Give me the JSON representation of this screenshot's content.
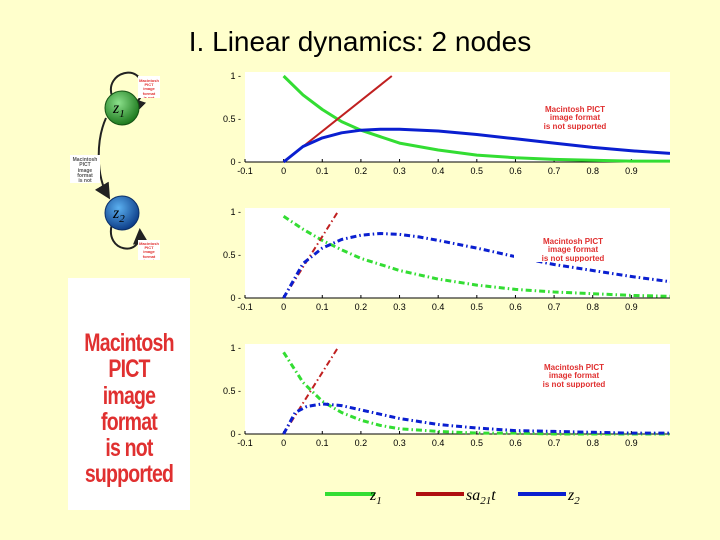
{
  "slide": {
    "title": "I. Linear dynamics: 2 nodes"
  },
  "nodes": [
    {
      "id": "z1",
      "name": "z",
      "sub": "1",
      "color": "#2E8B2E"
    },
    {
      "id": "z2",
      "name": "z",
      "sub": "2",
      "color": "#1E5FB4"
    }
  ],
  "pict_placeholder": {
    "text_lines": [
      "Macintosh PICT",
      "image format",
      "is not supported"
    ]
  },
  "legend": [
    {
      "name": "z",
      "sub": "1",
      "post": "",
      "color": "#33DD33"
    },
    {
      "name": "sa",
      "sub": "21",
      "post": "t",
      "color": "#B01010"
    },
    {
      "name": "z",
      "sub": "2",
      "post": "",
      "color": "#0A1FD0"
    }
  ],
  "chart_data": [
    {
      "type": "line",
      "panel": "top",
      "xlim": [
        -0.1,
        1.0
      ],
      "ylim": [
        0,
        1
      ],
      "x_ticks": [
        "-0.1",
        "0",
        "0.1",
        "0.2",
        "0.3",
        "0.4",
        "0.5",
        "0.6",
        "0.7",
        "0.8",
        "0.9"
      ],
      "y_ticks": [
        "0",
        "0.5",
        "1"
      ],
      "line_style": "solid",
      "series": [
        {
          "name": "z1",
          "color": "#33DD33",
          "x": [
            0,
            0.05,
            0.1,
            0.15,
            0.2,
            0.3,
            0.4,
            0.5,
            0.6,
            0.7,
            0.8,
            0.9,
            1.0
          ],
          "values": [
            1.0,
            0.78,
            0.61,
            0.47,
            0.37,
            0.22,
            0.14,
            0.08,
            0.05,
            0.03,
            0.02,
            0.01,
            0.01
          ]
        },
        {
          "name": "sa21t",
          "color": "#C02020",
          "x": [
            0,
            0.28
          ],
          "values": [
            0,
            1.0
          ]
        },
        {
          "name": "z2",
          "color": "#0A1FD0",
          "x": [
            0,
            0.05,
            0.1,
            0.15,
            0.2,
            0.25,
            0.3,
            0.4,
            0.5,
            0.6,
            0.7,
            0.8,
            0.9,
            1.0
          ],
          "values": [
            0,
            0.18,
            0.28,
            0.34,
            0.37,
            0.38,
            0.38,
            0.36,
            0.32,
            0.27,
            0.22,
            0.17,
            0.13,
            0.1
          ]
        }
      ]
    },
    {
      "type": "line",
      "panel": "middle",
      "xlim": [
        -0.1,
        1.0
      ],
      "ylim": [
        0,
        1
      ],
      "x_ticks": [
        "-0.1",
        "0",
        "0.1",
        "0.2",
        "0.3",
        "0.4",
        "0.5",
        "0.6",
        "0.7",
        "0.8",
        "0.9"
      ],
      "y_ticks": [
        "0",
        "0.5",
        "1"
      ],
      "line_style": "dashdot",
      "series": [
        {
          "name": "z1",
          "color": "#33DD33",
          "x": [
            0,
            0.05,
            0.1,
            0.15,
            0.2,
            0.3,
            0.4,
            0.5,
            0.6,
            0.7,
            0.8,
            0.9,
            1.0
          ],
          "values": [
            0.95,
            0.8,
            0.67,
            0.56,
            0.46,
            0.32,
            0.22,
            0.15,
            0.1,
            0.07,
            0.05,
            0.03,
            0.02
          ]
        },
        {
          "name": "sa21t",
          "color": "#C02020",
          "x": [
            0,
            0.14
          ],
          "values": [
            0,
            1.0
          ]
        },
        {
          "name": "z2",
          "color": "#0A1FD0",
          "x": [
            0,
            0.05,
            0.1,
            0.15,
            0.2,
            0.25,
            0.3,
            0.35,
            0.4,
            0.5,
            0.6,
            0.7,
            0.8,
            0.9,
            1.0
          ],
          "values": [
            0,
            0.4,
            0.58,
            0.68,
            0.73,
            0.75,
            0.74,
            0.71,
            0.67,
            0.58,
            0.48,
            0.39,
            0.32,
            0.25,
            0.19
          ]
        }
      ]
    },
    {
      "type": "line",
      "panel": "bottom",
      "xlim": [
        -0.1,
        1.0
      ],
      "ylim": [
        0,
        1
      ],
      "x_ticks": [
        "-0.1",
        "0",
        "0.1",
        "0.2",
        "0.3",
        "0.4",
        "0.5",
        "0.6",
        "0.7",
        "0.8",
        "0.9"
      ],
      "y_ticks": [
        "0",
        "0.5",
        "1"
      ],
      "line_style": "dashdot",
      "series": [
        {
          "name": "z1",
          "color": "#33DD33",
          "x": [
            0,
            0.05,
            0.1,
            0.15,
            0.2,
            0.25,
            0.3,
            0.4,
            0.5,
            0.6,
            0.7,
            0.8,
            0.9,
            1.0
          ],
          "values": [
            0.95,
            0.6,
            0.38,
            0.25,
            0.16,
            0.1,
            0.06,
            0.03,
            0.01,
            0.01,
            0,
            0,
            0,
            0
          ]
        },
        {
          "name": "sa21t",
          "color": "#C02020",
          "x": [
            0,
            0.14
          ],
          "values": [
            0,
            1.0
          ]
        },
        {
          "name": "z2",
          "color": "#0A1FD0",
          "x": [
            0,
            0.03,
            0.06,
            0.1,
            0.15,
            0.2,
            0.25,
            0.3,
            0.4,
            0.5,
            0.6,
            0.7,
            0.8,
            0.9,
            1.0
          ],
          "values": [
            0,
            0.25,
            0.32,
            0.35,
            0.33,
            0.28,
            0.23,
            0.18,
            0.11,
            0.07,
            0.04,
            0.03,
            0.02,
            0.01,
            0.01
          ]
        }
      ]
    }
  ]
}
